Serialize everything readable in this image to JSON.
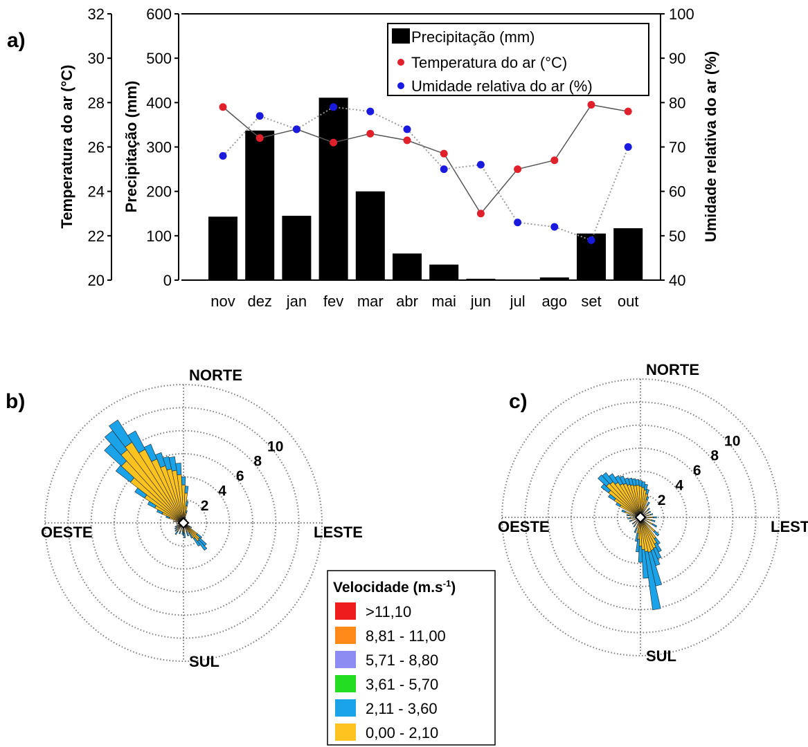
{
  "chart_data": [
    {
      "panel": "a)",
      "type": "bar",
      "categories": [
        "nov",
        "dez",
        "jan",
        "fev",
        "mar",
        "abr",
        "mai",
        "jun",
        "jul",
        "ago",
        "set",
        "out"
      ],
      "series": [
        {
          "name": "Precipitação (mm)",
          "type": "bar",
          "axis": "middle",
          "values": [
            143,
            337,
            145,
            411,
            200,
            60,
            35,
            3,
            1,
            6,
            105,
            117
          ]
        },
        {
          "name": "Temperatura do ar (°C)",
          "type": "line",
          "axis": "left",
          "color": "#e0202a",
          "values": [
            27.8,
            26.4,
            26.8,
            26.2,
            26.6,
            26.3,
            25.7,
            23.0,
            25.0,
            25.4,
            27.9,
            27.6
          ]
        },
        {
          "name": "Umidade relativa do ar (%)",
          "type": "line",
          "axis": "right",
          "color": "#1a1adf",
          "values": [
            68,
            77,
            74,
            79,
            78,
            74,
            65,
            66,
            53,
            52,
            49,
            70
          ]
        }
      ],
      "axes": {
        "left": {
          "label": "Temperatura do ar (°C)",
          "range": [
            20,
            32
          ],
          "ticks": [
            "20",
            "22",
            "24",
            "26",
            "28",
            "30",
            "32"
          ]
        },
        "middle": {
          "label": "Precipitação (mm)",
          "range": [
            0,
            600
          ],
          "ticks": [
            "0",
            "100",
            "200",
            "300",
            "400",
            "500",
            "600"
          ]
        },
        "right": {
          "label": "Umidade relativa do ar (%)",
          "range": [
            40,
            100
          ],
          "ticks": [
            "40",
            "50",
            "60",
            "70",
            "80",
            "90",
            "100"
          ]
        }
      },
      "legend": {
        "placement": "top-right",
        "items": [
          "Precipitação (mm)",
          "Temperatura do ar (°C)",
          "Umidade relativa do ar (%)"
        ]
      }
    },
    {
      "panel": "b)",
      "type": "polar-bar",
      "directions": {
        "n": "NORTE",
        "s": "SUL",
        "e": "LESTE",
        "w": "OESTE"
      },
      "radial_ticks": [
        "2",
        "4",
        "6",
        "8",
        "10"
      ],
      "rmax": 12,
      "sector_step_deg": 5,
      "sectors": [
        {
          "angle": 0,
          "values": [
            3.3,
            0.7
          ]
        },
        {
          "angle": 5,
          "values": [
            2.6,
            0.6
          ]
        },
        {
          "angle": 10,
          "values": [
            1.5,
            0.4
          ]
        },
        {
          "angle": 15,
          "values": [
            0.9,
            0.2
          ]
        },
        {
          "angle": 20,
          "values": [
            0.5,
            0
          ]
        },
        {
          "angle": 40,
          "values": [
            0.4,
            0
          ]
        },
        {
          "angle": 60,
          "values": [
            0.3,
            0
          ]
        },
        {
          "angle": 90,
          "values": [
            0.4,
            0
          ]
        },
        {
          "angle": 120,
          "values": [
            0.6,
            0.2
          ]
        },
        {
          "angle": 130,
          "values": [
            1.5,
            0.5
          ]
        },
        {
          "angle": 135,
          "values": [
            1.9,
            0.8
          ]
        },
        {
          "angle": 140,
          "values": [
            2.0,
            1.0
          ]
        },
        {
          "angle": 145,
          "values": [
            1.6,
            0.8
          ]
        },
        {
          "angle": 150,
          "values": [
            1.0,
            0.5
          ]
        },
        {
          "angle": 160,
          "values": [
            0.8,
            0.4
          ]
        },
        {
          "angle": 175,
          "values": [
            0.9,
            0.4
          ]
        },
        {
          "angle": 180,
          "values": [
            0.8,
            0.3
          ]
        },
        {
          "angle": 185,
          "values": [
            0.7,
            0.3
          ]
        },
        {
          "angle": 200,
          "values": [
            0.8,
            0.2
          ]
        },
        {
          "angle": 215,
          "values": [
            0.9,
            0.3
          ]
        },
        {
          "angle": 225,
          "values": [
            0.8,
            0.2
          ]
        },
        {
          "angle": 235,
          "values": [
            0.7,
            0.2
          ]
        },
        {
          "angle": 245,
          "values": [
            0.6,
            0.2
          ]
        },
        {
          "angle": 260,
          "values": [
            0.6,
            0
          ]
        },
        {
          "angle": 280,
          "values": [
            0.9,
            0
          ]
        },
        {
          "angle": 290,
          "values": [
            1.3,
            0.3
          ]
        },
        {
          "angle": 295,
          "values": [
            2.0,
            0.5
          ]
        },
        {
          "angle": 300,
          "values": [
            2.8,
            0.7
          ]
        },
        {
          "angle": 305,
          "values": [
            4.0,
            1.0
          ]
        },
        {
          "angle": 310,
          "values": [
            5.8,
            1.6
          ]
        },
        {
          "angle": 315,
          "values": [
            7.3,
            2.0
          ]
        },
        {
          "angle": 320,
          "values": [
            8.0,
            2.1
          ]
        },
        {
          "angle": 325,
          "values": [
            8.3,
            2.3
          ]
        },
        {
          "angle": 330,
          "values": [
            7.2,
            1.8
          ]
        },
        {
          "angle": 335,
          "values": [
            6.0,
            1.4
          ]
        },
        {
          "angle": 340,
          "values": [
            5.2,
            1.2
          ]
        },
        {
          "angle": 345,
          "values": [
            4.8,
            1.1
          ]
        },
        {
          "angle": 350,
          "values": [
            4.6,
            1.2
          ]
        },
        {
          "angle": 355,
          "values": [
            4.2,
            1.0
          ]
        }
      ]
    },
    {
      "panel": "c)",
      "type": "polar-bar",
      "directions": {
        "n": "NORTE",
        "s": "SUL",
        "e": "LESTE",
        "w": "OESTE"
      },
      "radial_ticks": [
        "2",
        "4",
        "6",
        "8",
        "10"
      ],
      "rmax": 12,
      "sector_step_deg": 5,
      "sectors": [
        {
          "angle": 0,
          "values": [
            2.7,
            0.5
          ]
        },
        {
          "angle": 5,
          "values": [
            2.6,
            0.5
          ]
        },
        {
          "angle": 10,
          "values": [
            2.4,
            0.5
          ]
        },
        {
          "angle": 15,
          "values": [
            2.1,
            0.4
          ]
        },
        {
          "angle": 20,
          "values": [
            1.6,
            0.3
          ]
        },
        {
          "angle": 30,
          "values": [
            1.2,
            0.3
          ]
        },
        {
          "angle": 45,
          "values": [
            0.9,
            0.2
          ]
        },
        {
          "angle": 60,
          "values": [
            0.8,
            0.2
          ]
        },
        {
          "angle": 75,
          "values": [
            0.9,
            0.2
          ]
        },
        {
          "angle": 90,
          "values": [
            1.1,
            0.3
          ]
        },
        {
          "angle": 105,
          "values": [
            1.0,
            0.3
          ]
        },
        {
          "angle": 120,
          "values": [
            1.2,
            0.4
          ]
        },
        {
          "angle": 135,
          "values": [
            1.7,
            0.5
          ]
        },
        {
          "angle": 145,
          "values": [
            2.2,
            0.6
          ]
        },
        {
          "angle": 150,
          "values": [
            2.6,
            0.8
          ]
        },
        {
          "angle": 155,
          "values": [
            2.9,
            1.0
          ]
        },
        {
          "angle": 160,
          "values": [
            3.0,
            1.4
          ]
        },
        {
          "angle": 165,
          "values": [
            3.1,
            3.0
          ]
        },
        {
          "angle": 170,
          "values": [
            3.0,
            5.1
          ]
        },
        {
          "angle": 175,
          "values": [
            2.8,
            2.5
          ]
        },
        {
          "angle": 180,
          "values": [
            2.5,
            1.4
          ]
        },
        {
          "angle": 185,
          "values": [
            1.9,
            1.1
          ]
        },
        {
          "angle": 190,
          "values": [
            1.4,
            0.7
          ]
        },
        {
          "angle": 200,
          "values": [
            1.0,
            0.4
          ]
        },
        {
          "angle": 215,
          "values": [
            0.8,
            0.2
          ]
        },
        {
          "angle": 230,
          "values": [
            0.7,
            0.2
          ]
        },
        {
          "angle": 250,
          "values": [
            0.8,
            0.2
          ]
        },
        {
          "angle": 265,
          "values": [
            0.9,
            0.2
          ]
        },
        {
          "angle": 280,
          "values": [
            1.0,
            0.2
          ]
        },
        {
          "angle": 290,
          "values": [
            1.4,
            0.3
          ]
        },
        {
          "angle": 300,
          "values": [
            2.0,
            0.4
          ]
        },
        {
          "angle": 305,
          "values": [
            2.7,
            0.6
          ]
        },
        {
          "angle": 310,
          "values": [
            3.5,
            0.8
          ]
        },
        {
          "angle": 315,
          "values": [
            4.0,
            1.0
          ]
        },
        {
          "angle": 320,
          "values": [
            3.9,
            1.0
          ]
        },
        {
          "angle": 325,
          "values": [
            3.6,
            0.9
          ]
        },
        {
          "angle": 330,
          "values": [
            3.3,
            0.8
          ]
        },
        {
          "angle": 335,
          "values": [
            3.2,
            0.7
          ]
        },
        {
          "angle": 340,
          "values": [
            3.0,
            0.6
          ]
        },
        {
          "angle": 345,
          "values": [
            2.9,
            0.6
          ]
        },
        {
          "angle": 350,
          "values": [
            2.8,
            0.6
          ]
        },
        {
          "angle": 355,
          "values": [
            2.8,
            0.5
          ]
        }
      ]
    }
  ],
  "wind_legend": {
    "title": "Velocidade (m.s",
    "title_sup": "-1",
    "title_end": ")",
    "items": [
      {
        "label": ">11,10",
        "color": "#ee1c1c"
      },
      {
        "label": "8,81 - 11,00",
        "color": "#ff8a1a"
      },
      {
        "label": "5,71 - 8,80",
        "color": "#8c8cf2"
      },
      {
        "label": "3,61 - 5,70",
        "color": "#22dd22"
      },
      {
        "label": "2,11 - 3,60",
        "color": "#1aa3e8"
      },
      {
        "label": "0,00 - 2,10",
        "color": "#ffc31f"
      }
    ]
  }
}
